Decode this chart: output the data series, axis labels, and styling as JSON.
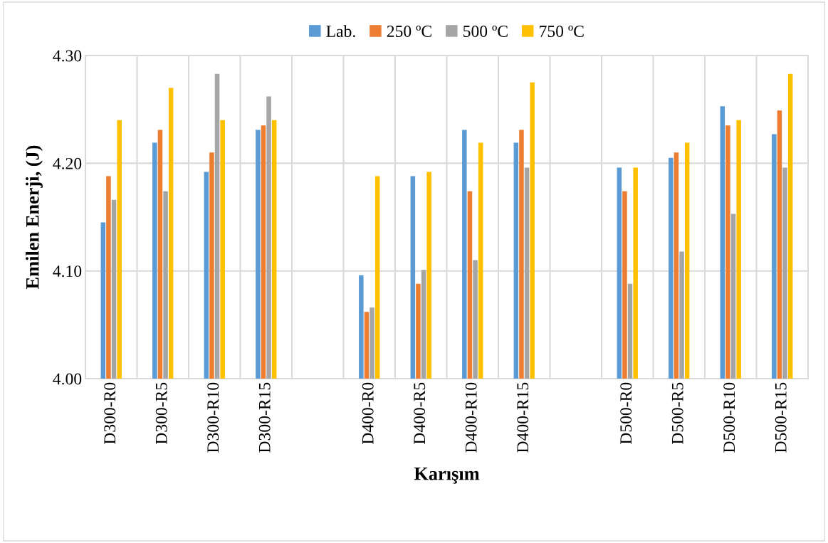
{
  "chart_data": {
    "type": "bar",
    "xlabel": "Karışım",
    "ylabel": "Emilen Enerji, (J)",
    "categories": [
      "D300-R0",
      "D300-R5",
      "D300-R10",
      "D300-R15",
      null,
      "D400-R0",
      "D400-R5",
      "D400-R10",
      "D400-R15",
      null,
      "D500-R0",
      "D500-R5",
      "D500-R10",
      "D500-R15"
    ],
    "series": [
      {
        "name": "Lab.",
        "color": "#5b9bd5",
        "values": [
          4.145,
          4.219,
          4.192,
          4.231,
          null,
          4.096,
          4.188,
          4.231,
          4.219,
          null,
          4.196,
          4.205,
          4.253,
          4.227
        ]
      },
      {
        "name": "250 ºC",
        "color": "#ed7d31",
        "values": [
          4.188,
          4.231,
          4.21,
          4.235,
          null,
          4.062,
          4.088,
          4.174,
          4.231,
          null,
          4.174,
          4.21,
          4.235,
          4.249
        ]
      },
      {
        "name": "500 ºC",
        "color": "#a5a5a5",
        "values": [
          4.166,
          4.174,
          4.283,
          4.262,
          null,
          4.066,
          4.101,
          4.11,
          4.196,
          null,
          4.088,
          4.118,
          4.153,
          4.196
        ]
      },
      {
        "name": "750 ºC",
        "color": "#ffc000",
        "values": [
          4.24,
          4.27,
          4.24,
          4.24,
          null,
          4.188,
          4.192,
          4.219,
          4.275,
          null,
          4.196,
          4.219,
          4.24,
          4.283
        ]
      }
    ],
    "ylim": [
      4.0,
      4.3
    ],
    "yticks": [
      {
        "value": 4.0,
        "label": "4.00"
      },
      {
        "value": 4.1,
        "label": "4.10"
      },
      {
        "value": 4.2,
        "label": "4.20"
      },
      {
        "value": 4.3,
        "label": "4.30"
      }
    ],
    "grid": true,
    "legend": "top"
  }
}
